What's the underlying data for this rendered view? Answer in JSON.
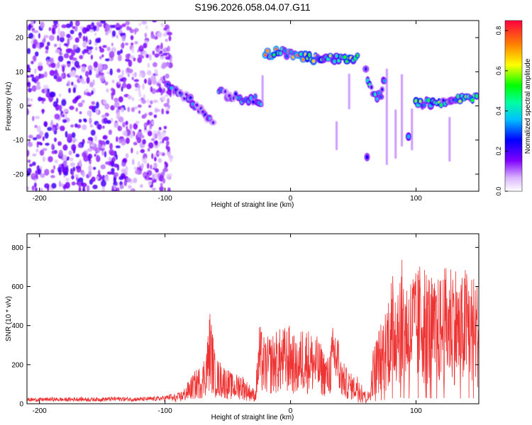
{
  "figure": {
    "title": "S196.2026.058.04.07.G11"
  },
  "chart_data": [
    {
      "type": "heatmap",
      "title": "S196.2026.058.04.07.G11",
      "xlabel": "Height of straight line (km)",
      "ylabel": "Frequency (Hz)",
      "xlim": [
        -210,
        150
      ],
      "ylim": [
        -25,
        25
      ],
      "xticks": [
        -200,
        -100,
        0,
        100
      ],
      "yticks": [
        -20,
        -10,
        0,
        10,
        20
      ],
      "colorbar": {
        "label": "Normalized spectral amplitude",
        "range": [
          0,
          0.85
        ],
        "ticks": [
          0.0,
          0.2,
          0.4,
          0.6,
          0.8
        ]
      },
      "features": [
        {
          "name": "noise-field",
          "x": [
            -210,
            -95
          ],
          "y": [
            -25,
            25
          ],
          "amplitude": 0.15
        },
        {
          "name": "descending-track",
          "points": [
            [
              -98,
              6
            ],
            [
              -88,
              4
            ],
            [
              -78,
              1
            ],
            [
              -68,
              -3
            ],
            [
              -60,
              -6
            ]
          ],
          "amplitude": 0.3
        },
        {
          "name": "mid-cluster",
          "points": [
            [
              -57,
              4
            ],
            [
              -47,
              3
            ],
            [
              -37,
              2
            ],
            [
              -28,
              2
            ],
            [
              -22,
              1
            ]
          ],
          "amplitude": 0.3
        },
        {
          "name": "upper-track",
          "points": [
            [
              -20,
              15
            ],
            [
              -8,
              16
            ],
            [
              2,
              15
            ],
            [
              15,
              14
            ],
            [
              30,
              14
            ],
            [
              40,
              14
            ],
            [
              55,
              14
            ]
          ],
          "amplitude": 0.55
        },
        {
          "name": "v-shape",
          "points": [
            [
              60,
              10
            ],
            [
              66,
              3
            ],
            [
              72,
              3
            ],
            [
              76,
              10
            ]
          ],
          "amplitude": 0.35
        },
        {
          "name": "right-track",
          "points": [
            [
              100,
              1
            ],
            [
              115,
              1
            ],
            [
              125,
              1
            ],
            [
              135,
              2
            ],
            [
              150,
              2
            ]
          ],
          "amplitude": 0.45
        },
        {
          "name": "isolated-blob-1",
          "points": [
            [
              94,
              -9
            ]
          ],
          "amplitude": 0.35
        },
        {
          "name": "isolated-blob-2",
          "points": [
            [
              61,
              -15
            ]
          ],
          "amplitude": 0.25
        },
        {
          "name": "vertical-streaks",
          "x": [
            -22,
            37,
            47,
            77,
            84,
            89,
            97,
            127
          ],
          "amplitude": 0.1
        }
      ]
    },
    {
      "type": "line",
      "xlabel": "Height of straight line (km)",
      "ylabel": "SNR (10 * v/v)",
      "xlim": [
        -210,
        150
      ],
      "ylim": [
        0,
        870
      ],
      "xticks": [
        -200,
        -100,
        0,
        100
      ],
      "yticks": [
        0,
        200,
        400,
        600,
        800
      ],
      "series": [
        {
          "name": "SNR",
          "color": "#ee3333",
          "x": [
            -210,
            -200,
            -190,
            -180,
            -170,
            -160,
            -150,
            -140,
            -130,
            -120,
            -110,
            -100,
            -95,
            -90,
            -85,
            -80,
            -75,
            -70,
            -66,
            -64,
            -60,
            -55,
            -50,
            -45,
            -40,
            -35,
            -30,
            -28,
            -25,
            -22,
            -20,
            -15,
            -10,
            -5,
            0,
            5,
            10,
            15,
            20,
            25,
            30,
            35,
            38,
            40,
            45,
            50,
            55,
            58,
            60,
            63,
            66,
            70,
            75,
            78,
            80,
            82,
            85,
            88,
            90,
            95,
            98,
            100,
            105,
            110,
            115,
            120,
            125,
            130,
            135,
            140,
            145,
            150
          ],
          "values": [
            22,
            22,
            24,
            22,
            25,
            23,
            24,
            26,
            25,
            24,
            26,
            30,
            38,
            45,
            65,
            110,
            150,
            170,
            300,
            420,
            200,
            180,
            150,
            120,
            140,
            100,
            70,
            60,
            350,
            300,
            280,
            300,
            320,
            330,
            340,
            260,
            350,
            320,
            300,
            250,
            200,
            380,
            300,
            200,
            150,
            120,
            130,
            90,
            40,
            60,
            250,
            320,
            400,
            500,
            550,
            560,
            600,
            640,
            580,
            540,
            600,
            560,
            640,
            580,
            520,
            560,
            600,
            640,
            520,
            600,
            560,
            520
          ]
        }
      ]
    }
  ]
}
